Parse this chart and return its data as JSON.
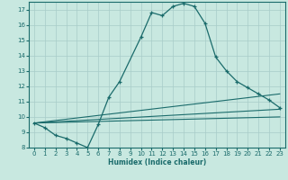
{
  "xlabel": "Humidex (Indice chaleur)",
  "xlim": [
    -0.5,
    23.5
  ],
  "ylim": [
    8,
    17.5
  ],
  "yticks": [
    8,
    9,
    10,
    11,
    12,
    13,
    14,
    15,
    16,
    17
  ],
  "xticks": [
    0,
    1,
    2,
    3,
    4,
    5,
    6,
    7,
    8,
    9,
    10,
    11,
    12,
    13,
    14,
    15,
    16,
    17,
    18,
    19,
    20,
    21,
    22,
    23
  ],
  "bg_color": "#c8e8e0",
  "line_color": "#1a6b6b",
  "grid_color": "#a8ccc8",
  "line1_x": [
    0,
    1,
    2,
    3,
    4,
    5,
    6,
    7,
    8,
    10,
    11,
    12,
    13,
    14,
    15,
    16,
    17,
    18,
    19,
    20,
    21,
    22,
    23
  ],
  "line1_y": [
    9.6,
    9.3,
    8.8,
    8.6,
    8.3,
    8.0,
    9.5,
    11.3,
    12.3,
    15.2,
    16.8,
    16.6,
    17.2,
    17.4,
    17.2,
    16.1,
    13.9,
    13.0,
    12.3,
    11.9,
    11.5,
    11.1,
    10.6
  ],
  "line2_x": [
    0,
    23
  ],
  "line2_y": [
    9.6,
    11.5
  ],
  "line3_x": [
    0,
    23
  ],
  "line3_y": [
    9.6,
    10.5
  ],
  "line4_x": [
    0,
    23
  ],
  "line4_y": [
    9.6,
    10.0
  ]
}
